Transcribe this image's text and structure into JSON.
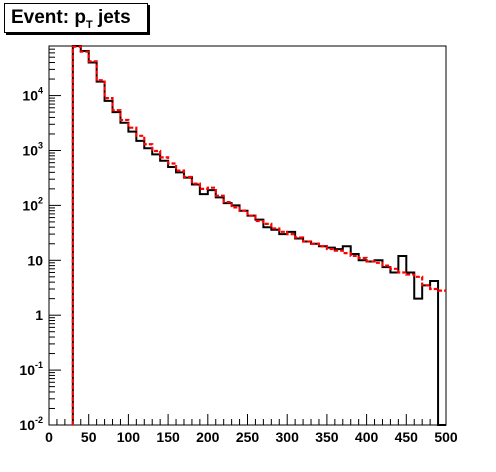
{
  "title": {
    "main": "Event: p",
    "subscript": "T",
    "suffix": " jets"
  },
  "chart_data": {
    "type": "line",
    "title": "Event: pT jets",
    "xlabel": "",
    "ylabel": "",
    "xlim": [
      0,
      500
    ],
    "ylim": [
      0.01,
      80000
    ],
    "y_scale": "log",
    "grid": false,
    "x_tick_labels": [
      "0",
      "50",
      "100",
      "150",
      "200",
      "250",
      "300",
      "350",
      "400",
      "450",
      "500"
    ],
    "y_tick_labels": [
      {
        "base": "10",
        "exp": "-2"
      },
      {
        "base": "10",
        "exp": "-1"
      },
      {
        "base": "1",
        "exp": ""
      },
      {
        "base": "10",
        "exp": ""
      },
      {
        "base": "10",
        "exp": "2"
      },
      {
        "base": "10",
        "exp": "3"
      },
      {
        "base": "10",
        "exp": "4"
      }
    ],
    "bin_width": 10,
    "series": [
      {
        "style": "solid",
        "color": "#000000",
        "bins_low_edge": [
          30,
          40,
          50,
          60,
          70,
          80,
          90,
          100,
          110,
          120,
          130,
          140,
          150,
          160,
          170,
          180,
          190,
          200,
          210,
          220,
          230,
          240,
          250,
          260,
          270,
          280,
          290,
          300,
          310,
          320,
          330,
          340,
          350,
          360,
          370,
          380,
          390,
          400,
          410,
          420,
          430,
          440,
          450,
          460,
          470,
          480,
          490
        ],
        "values": [
          80000,
          65000,
          40000,
          18000,
          8000,
          5000,
          3200,
          2200,
          1500,
          1100,
          850,
          650,
          500,
          400,
          320,
          240,
          160,
          190,
          140,
          110,
          100,
          80,
          65,
          55,
          40,
          36,
          30,
          33,
          25,
          22,
          20,
          18,
          17,
          16,
          18,
          13,
          10,
          9.5,
          10,
          7.5,
          6,
          12,
          6,
          2,
          3.5,
          4.2,
          0
        ]
      },
      {
        "style": "dashed",
        "color": "#ff0000",
        "bins_low_edge": [
          30,
          40,
          50,
          60,
          70,
          80,
          90,
          100,
          110,
          120,
          130,
          140,
          150,
          160,
          170,
          180,
          190,
          200,
          210,
          220,
          230,
          240,
          250,
          260,
          270,
          280,
          290,
          300,
          310,
          320,
          330,
          340,
          350,
          360,
          370,
          380,
          390,
          400,
          410,
          420,
          430,
          440,
          450,
          460,
          470,
          480,
          490
        ],
        "values": [
          78000,
          63000,
          42000,
          19000,
          9000,
          5400,
          3600,
          2600,
          1850,
          1300,
          980,
          750,
          580,
          430,
          330,
          250,
          200,
          210,
          150,
          115,
          92,
          80,
          65,
          52,
          46,
          38,
          33,
          30,
          26,
          22,
          20,
          18,
          16,
          15,
          13.5,
          12,
          11,
          9.5,
          9,
          8,
          7,
          6,
          5.5,
          5,
          3.5,
          3,
          2.8
        ]
      }
    ]
  }
}
